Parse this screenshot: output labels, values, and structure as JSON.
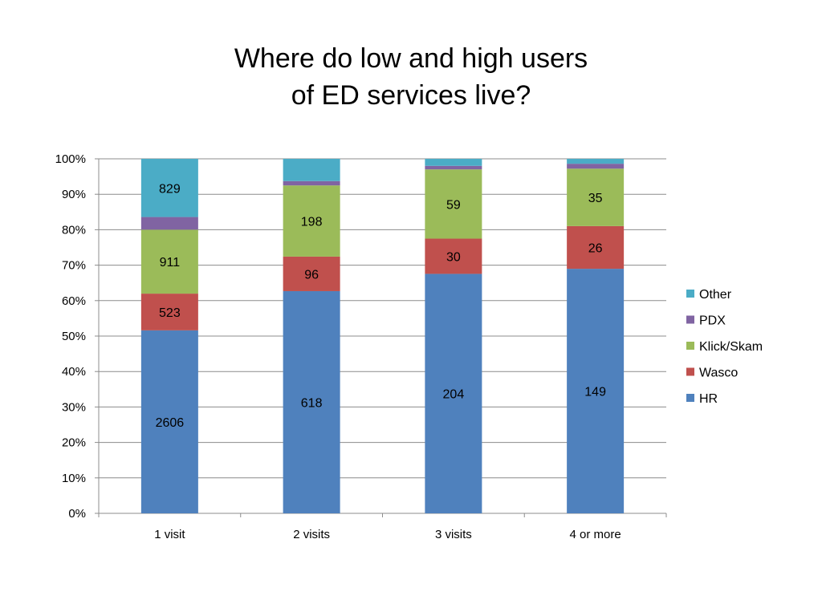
{
  "title_line1": "Where do low and high users",
  "title_line2": "of ED services live?",
  "chart_data": {
    "type": "bar",
    "stacked": "percent",
    "title": "Where do low and high users of ED services live?",
    "categories": [
      "1 visit",
      "2 visits",
      "3 visits",
      "4 or more"
    ],
    "series": [
      {
        "name": "HR",
        "color": "#4F81BD",
        "values": [
          2606,
          618,
          204,
          149
        ]
      },
      {
        "name": "Wasco",
        "color": "#C0504D",
        "values": [
          523,
          96,
          30,
          26
        ]
      },
      {
        "name": "Klick/Skam",
        "color": "#9BBB59",
        "values": [
          911,
          198,
          59,
          35
        ]
      },
      {
        "name": "PDX",
        "color": "#8064A2",
        "values": [
          180,
          12,
          3,
          3
        ]
      },
      {
        "name": "Other",
        "color": "#4BACC6",
        "values": [
          829,
          62,
          6,
          3
        ]
      }
    ],
    "data_labels": {
      "HR": [
        "2606",
        "618",
        "204",
        "149"
      ],
      "Wasco": [
        "523",
        "96",
        "30",
        "26"
      ],
      "Klick/Skam": [
        "911",
        "198",
        "59",
        "35"
      ],
      "PDX": [
        "",
        "",
        "",
        ""
      ],
      "Other": [
        "829",
        "",
        "",
        ""
      ]
    },
    "y_ticks": [
      "0%",
      "10%",
      "20%",
      "30%",
      "40%",
      "50%",
      "60%",
      "70%",
      "80%",
      "90%",
      "100%"
    ],
    "ylim": [
      0,
      100
    ],
    "grid": true,
    "legend_position": "right",
    "legend_order": [
      "Other",
      "PDX",
      "Klick/Skam",
      "Wasco",
      "HR"
    ]
  }
}
